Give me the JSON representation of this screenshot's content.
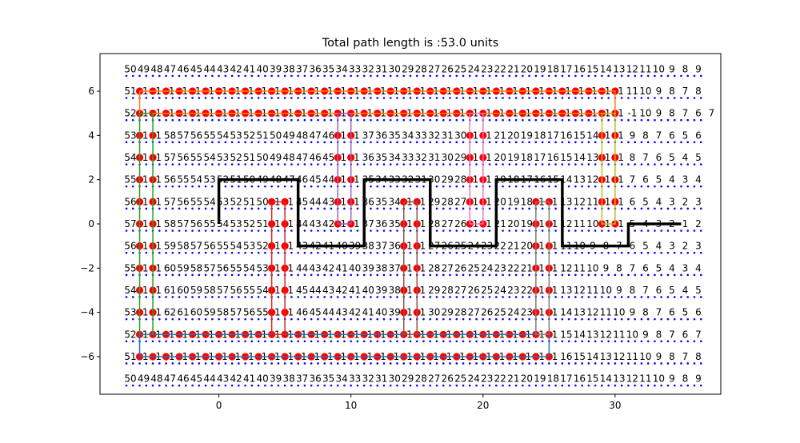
{
  "chart_data": {
    "type": "scatter",
    "title": "Total path length is :53.0 units",
    "xlabel": "",
    "ylabel": "",
    "xlim": [
      -9,
      38
    ],
    "ylim": [
      -7.7,
      7.7
    ],
    "xticks": [
      0,
      10,
      20,
      30
    ],
    "yticks": [
      -6,
      -4,
      -2,
      0,
      2,
      4,
      6
    ],
    "xtick_labels": [
      "0",
      "10",
      "20",
      "30"
    ],
    "ytick_labels": [
      "−6",
      "−4",
      "−2",
      "0",
      "2",
      "4",
      "6"
    ],
    "grid": false,
    "legend": "none",
    "grid_points": {
      "x_range": [
        -7,
        36
      ],
      "y_range": [
        -7,
        7
      ],
      "color": "#0000ff"
    },
    "cell_rows": [
      {
        "y": 7,
        "cells": [
          "50",
          "49",
          "48",
          "47",
          "46",
          "45",
          "44",
          "43",
          "42",
          "41",
          "40",
          "39",
          "38",
          "37",
          "36",
          "35",
          "34",
          "33",
          "32",
          "31",
          "30",
          "29",
          "28",
          "27",
          "26",
          "25",
          "24",
          "23",
          "22",
          "21",
          "20",
          "19",
          "18",
          "17",
          "16",
          "15",
          "14",
          "13",
          "12",
          "11",
          "10",
          "9",
          "8",
          "9"
        ]
      },
      {
        "y": 6,
        "cells": [
          "51",
          "-1",
          "-1",
          "-1",
          "-1",
          "-1",
          "-1",
          "-1",
          "-1",
          "-1",
          "-1",
          "-1",
          "-1",
          "-1",
          "-1",
          "-1",
          "-1",
          "-1",
          "-1",
          "-1",
          "-1",
          "-1",
          "-1",
          "-1",
          "-1",
          "-1",
          "-1",
          "-1",
          "-1",
          "-1",
          "-1",
          "-1",
          "-1",
          "-1",
          "-1",
          "-1",
          "-1",
          "-1",
          "11",
          "10",
          "9",
          "8",
          "7",
          "8"
        ]
      },
      {
        "y": 5,
        "cells": [
          "52",
          "-1",
          "-1",
          "-1",
          "-1",
          "-1",
          "-1",
          "-1",
          "-1",
          "-1",
          "-1",
          "-1",
          "-1",
          "-1",
          "-1",
          "-1",
          "-1",
          "-1",
          "-1",
          "-1",
          "-1",
          "-1",
          "-1",
          "-1",
          "-1",
          "-1",
          "-1",
          "-1",
          "-1",
          "-1",
          "-1",
          "-1",
          "-1",
          "-1",
          "-1",
          "-1",
          "-1",
          "-1",
          "-1",
          "10",
          "9",
          "8",
          "7",
          "6",
          "7"
        ]
      },
      {
        "y": 4,
        "cells": [
          "53",
          "-1",
          "-1",
          "58",
          "57",
          "56",
          "55",
          "54",
          "53",
          "52",
          "51",
          "50",
          "49",
          "48",
          "47",
          "46",
          "-1",
          "-1",
          "37",
          "36",
          "35",
          "34",
          "33",
          "32",
          "31",
          "30",
          "-1",
          "-1",
          "21",
          "20",
          "19",
          "18",
          "17",
          "16",
          "15",
          "14",
          "-1",
          "-1",
          "9",
          "8",
          "7",
          "6",
          "5",
          "6"
        ]
      },
      {
        "y": 3,
        "cells": [
          "54",
          "-1",
          "-1",
          "57",
          "56",
          "55",
          "54",
          "53",
          "52",
          "51",
          "50",
          "49",
          "48",
          "47",
          "46",
          "45",
          "-1",
          "-1",
          "36",
          "35",
          "34",
          "33",
          "32",
          "31",
          "30",
          "29",
          "-1",
          "-1",
          "20",
          "19",
          "18",
          "17",
          "16",
          "15",
          "14",
          "13",
          "-1",
          "-1",
          "8",
          "7",
          "6",
          "5",
          "4",
          "5"
        ]
      },
      {
        "y": 2,
        "cells": [
          "55",
          "-1",
          "-1",
          "56",
          "55",
          "54",
          "53",
          "52",
          "51",
          "50",
          "49",
          "48",
          "47",
          "46",
          "45",
          "44",
          "-1",
          "-1",
          "35",
          "34",
          "33",
          "32",
          "31",
          "30",
          "29",
          "28",
          "-1",
          "-1",
          "19",
          "18",
          "17",
          "16",
          "15",
          "14",
          "13",
          "12",
          "-1",
          "-1",
          "7",
          "6",
          "5",
          "4",
          "3",
          "4"
        ]
      },
      {
        "y": 1,
        "cells": [
          "56",
          "-1",
          "-1",
          "57",
          "56",
          "55",
          "54",
          "53",
          "52",
          "51",
          "50",
          "-1",
          "-1",
          "45",
          "44",
          "43",
          "-1",
          "-1",
          "36",
          "35",
          "34",
          "-1",
          "-1",
          "29",
          "28",
          "27",
          "-1",
          "-1",
          "20",
          "19",
          "18",
          "-1",
          "-1",
          "13",
          "12",
          "11",
          "-1",
          "-1",
          "6",
          "5",
          "4",
          "3",
          "2",
          "3"
        ]
      },
      {
        "y": 0,
        "cells": [
          "57",
          "-1",
          "-1",
          "58",
          "57",
          "56",
          "55",
          "54",
          "53",
          "52",
          "51",
          "-1",
          "-1",
          "44",
          "43",
          "42",
          "-1",
          "-1",
          "37",
          "36",
          "35",
          "-1",
          "-1",
          "28",
          "27",
          "26",
          "-1",
          "-1",
          "21",
          "20",
          "19",
          "-1",
          "-1",
          "12",
          "11",
          "10",
          "-1",
          "-1",
          "5",
          "4",
          "3",
          "2",
          "1",
          "2"
        ]
      },
      {
        "y": -1,
        "cells": [
          "56",
          "-1",
          "-1",
          "59",
          "58",
          "57",
          "56",
          "55",
          "54",
          "53",
          "52",
          "-1",
          "-1",
          "43",
          "42",
          "41",
          "40",
          "39",
          "38",
          "37",
          "36",
          "-1",
          "-1",
          "27",
          "26",
          "25",
          "24",
          "23",
          "22",
          "21",
          "20",
          "-1",
          "-1",
          "11",
          "10",
          "9",
          "8",
          "7",
          "6",
          "5",
          "4",
          "3",
          "2",
          "3"
        ]
      },
      {
        "y": -2,
        "cells": [
          "55",
          "-1",
          "-1",
          "60",
          "59",
          "58",
          "57",
          "56",
          "55",
          "54",
          "53",
          "-1",
          "-1",
          "44",
          "43",
          "42",
          "41",
          "40",
          "39",
          "38",
          "37",
          "-1",
          "-1",
          "28",
          "27",
          "26",
          "25",
          "24",
          "23",
          "22",
          "21",
          "-1",
          "-1",
          "12",
          "11",
          "10",
          "9",
          "8",
          "7",
          "6",
          "5",
          "4",
          "3",
          "4"
        ]
      },
      {
        "y": -3,
        "cells": [
          "54",
          "-1",
          "-1",
          "61",
          "60",
          "59",
          "58",
          "57",
          "56",
          "55",
          "54",
          "-1",
          "-1",
          "45",
          "44",
          "43",
          "42",
          "41",
          "40",
          "39",
          "38",
          "-1",
          "-1",
          "29",
          "28",
          "27",
          "26",
          "25",
          "24",
          "23",
          "22",
          "-1",
          "-1",
          "13",
          "12",
          "11",
          "10",
          "9",
          "8",
          "7",
          "6",
          "5",
          "4",
          "5"
        ]
      },
      {
        "y": -4,
        "cells": [
          "53",
          "-1",
          "-1",
          "62",
          "61",
          "60",
          "59",
          "58",
          "57",
          "56",
          "55",
          "-1",
          "-1",
          "46",
          "45",
          "44",
          "43",
          "42",
          "41",
          "40",
          "39",
          "-1",
          "-1",
          "30",
          "29",
          "28",
          "27",
          "26",
          "25",
          "24",
          "23",
          "-1",
          "-1",
          "14",
          "13",
          "12",
          "11",
          "10",
          "9",
          "8",
          "7",
          "6",
          "5",
          "6"
        ]
      },
      {
        "y": -5,
        "cells": [
          "52",
          "-1",
          "-1",
          "-1",
          "-1",
          "-1",
          "-1",
          "-1",
          "-1",
          "-1",
          "-1",
          "-1",
          "-1",
          "-1",
          "-1",
          "-1",
          "-1",
          "-1",
          "-1",
          "-1",
          "-1",
          "-1",
          "-1",
          "-1",
          "-1",
          "-1",
          "-1",
          "-1",
          "-1",
          "-1",
          "-1",
          "-1",
          "-1",
          "15",
          "14",
          "13",
          "12",
          "11",
          "10",
          "9",
          "8",
          "7",
          "6",
          "7"
        ]
      },
      {
        "y": -6,
        "cells": [
          "51",
          "-1",
          "-1",
          "-1",
          "-1",
          "-1",
          "-1",
          "-1",
          "-1",
          "-1",
          "-1",
          "-1",
          "-1",
          "-1",
          "-1",
          "-1",
          "-1",
          "-1",
          "-1",
          "-1",
          "-1",
          "-1",
          "-1",
          "-1",
          "-1",
          "-1",
          "-1",
          "-1",
          "-1",
          "-1",
          "-1",
          "-1",
          "-1",
          "16",
          "15",
          "14",
          "13",
          "12",
          "11",
          "10",
          "9",
          "8",
          "7",
          "8"
        ]
      },
      {
        "y": -7,
        "cells": [
          "50",
          "49",
          "48",
          "47",
          "46",
          "45",
          "44",
          "43",
          "42",
          "41",
          "40",
          "39",
          "38",
          "37",
          "36",
          "35",
          "34",
          "33",
          "32",
          "31",
          "30",
          "29",
          "28",
          "27",
          "26",
          "25",
          "24",
          "23",
          "22",
          "21",
          "20",
          "19",
          "18",
          "17",
          "16",
          "15",
          "14",
          "13",
          "12",
          "11",
          "10",
          "9",
          "8",
          "9"
        ]
      }
    ],
    "obstacles": [
      {
        "color": "#ff7f0e",
        "corners": [
          [
            -6,
            6
          ],
          [
            30,
            6
          ],
          [
            30,
            5
          ],
          [
            -6,
            5
          ]
        ]
      },
      {
        "color": "#2ca02c",
        "corners": [
          [
            -6,
            5
          ],
          [
            -5,
            5
          ],
          [
            -5,
            -5
          ],
          [
            -6,
            -5
          ]
        ]
      },
      {
        "color": "#1f77b4",
        "corners": [
          [
            -6,
            -5
          ],
          [
            25,
            -5
          ],
          [
            25,
            -6
          ],
          [
            -6,
            -6
          ]
        ]
      },
      {
        "color": "#d62728",
        "corners": [
          [
            4,
            1
          ],
          [
            5,
            1
          ],
          [
            5,
            -5
          ],
          [
            4,
            -5
          ]
        ]
      },
      {
        "color": "#9467bd",
        "corners": [
          [
            9,
            5
          ],
          [
            10,
            5
          ],
          [
            10,
            0
          ],
          [
            9,
            0
          ]
        ]
      },
      {
        "color": "#8c564b",
        "corners": [
          [
            14,
            1
          ],
          [
            15,
            1
          ],
          [
            15,
            -5
          ],
          [
            14,
            -5
          ]
        ]
      },
      {
        "color": "#e377c2",
        "corners": [
          [
            19,
            5
          ],
          [
            20,
            5
          ],
          [
            20,
            0
          ],
          [
            19,
            0
          ]
        ]
      },
      {
        "color": "#7f7f7f",
        "corners": [
          [
            24,
            1
          ],
          [
            25,
            1
          ],
          [
            25,
            -5
          ],
          [
            24,
            -5
          ]
        ]
      },
      {
        "color": "#bcbd22",
        "corners": [
          [
            29,
            5
          ],
          [
            30,
            5
          ],
          [
            30,
            0
          ],
          [
            29,
            0
          ]
        ]
      }
    ],
    "obstacle_points_color": "#ff0000",
    "path": {
      "color": "#000000",
      "points": [
        [
          0,
          0
        ],
        [
          0,
          2
        ],
        [
          6,
          2
        ],
        [
          6,
          -1
        ],
        [
          11,
          -1
        ],
        [
          11,
          2
        ],
        [
          16,
          2
        ],
        [
          16,
          -1
        ],
        [
          21,
          -1
        ],
        [
          21,
          2
        ],
        [
          26,
          2
        ],
        [
          26,
          -1
        ],
        [
          31,
          -1
        ],
        [
          31,
          0
        ],
        [
          35,
          0
        ]
      ]
    }
  }
}
